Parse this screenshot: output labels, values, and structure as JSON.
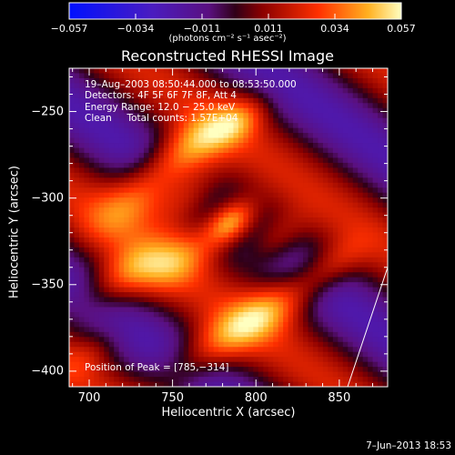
{
  "colorbar": {
    "ticks": [
      "−0.057",
      "−0.034",
      "−0.011",
      "0.011",
      "0.034",
      "0.057"
    ],
    "units": "(photons cm⁻² s⁻¹ asec⁻²)",
    "min": -0.057,
    "max": 0.057
  },
  "chart_data": {
    "type": "heatmap",
    "title": "Reconstructed RHESSI Image",
    "xlabel": "Heliocentric X (arcsec)",
    "ylabel": "Heliocentric Y (arcsec)",
    "xlim": [
      688,
      879
    ],
    "ylim": [
      -409,
      -225
    ],
    "xticks": [
      {
        "label": "700",
        "value": 700
      },
      {
        "label": "750",
        "value": 750
      },
      {
        "label": "800",
        "value": 800
      },
      {
        "label": "850",
        "value": 850
      }
    ],
    "yticks": [
      {
        "label": "−250",
        "value": -250
      },
      {
        "label": "−300",
        "value": -300
      },
      {
        "label": "−350",
        "value": -350
      },
      {
        "label": "−400",
        "value": -400
      }
    ],
    "peak": {
      "x": 785,
      "y": -314,
      "value": 0.057
    },
    "sources": [
      {
        "x": 785,
        "y": -314,
        "amp": 0.058,
        "sa": 12,
        "sb": 8
      },
      {
        "x": 760,
        "y": -300,
        "amp": 0.03,
        "sa": 16,
        "sb": 10
      },
      {
        "x": 810,
        "y": -325,
        "amp": 0.028,
        "sa": 14,
        "sb": 9
      },
      {
        "x": 735,
        "y": -295,
        "amp": 0.032,
        "sa": 28,
        "sb": 11
      },
      {
        "x": 760,
        "y": -270,
        "amp": 0.03,
        "sa": 22,
        "sb": 10
      },
      {
        "x": 790,
        "y": -255,
        "amp": 0.022,
        "sa": 14,
        "sb": 8
      },
      {
        "x": 720,
        "y": -345,
        "amp": 0.03,
        "sa": 20,
        "sb": 10
      },
      {
        "x": 755,
        "y": -335,
        "amp": 0.025,
        "sa": 20,
        "sb": 10
      },
      {
        "x": 775,
        "y": -385,
        "amp": 0.03,
        "sa": 28,
        "sb": 10
      },
      {
        "x": 815,
        "y": -360,
        "amp": 0.028,
        "sa": 22,
        "sb": 10
      },
      {
        "x": 845,
        "y": -340,
        "amp": 0.02,
        "sa": 16,
        "sb": 8
      },
      {
        "x": 700,
        "y": -390,
        "amp": 0.012,
        "sa": 16,
        "sb": 8
      }
    ],
    "stripes": {
      "amp": -0.022,
      "period": 85,
      "angle_deg": 35
    },
    "limb_line": [
      [
        879,
        -340
      ],
      [
        855,
        -409
      ]
    ]
  },
  "info": {
    "line1": "19–Aug–2003 08:50:44.000 to 08:53:50.000",
    "line2": "Detectors: 4F 5F 6F 7F 8F, Att 4",
    "line3": "Energy Range: 12.0 − 25.0 keV",
    "line4": "Clean     Total counts: 1.57E+04"
  },
  "peak_text": "Position of Peak = [785,−314]",
  "date_stamp": "7–Jun–2013 18:53"
}
